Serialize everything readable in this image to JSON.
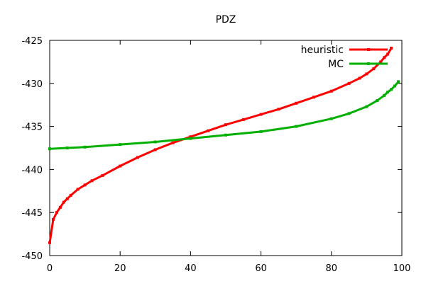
{
  "chart_data": {
    "type": "line",
    "title": "PDZ",
    "xlabel": "",
    "ylabel": "",
    "xlim": [
      0,
      100
    ],
    "ylim": [
      -450,
      -425
    ],
    "xticks": [
      0,
      20,
      40,
      60,
      80,
      100
    ],
    "yticks": [
      -450,
      -445,
      -440,
      -435,
      -430,
      -425
    ],
    "grid": false,
    "legend_position": "top-right",
    "series": [
      {
        "name": "heuristic",
        "color": "#ff0000",
        "marker": "square",
        "x": [
          0,
          1,
          2,
          3,
          4,
          5,
          6,
          8,
          10,
          12,
          15,
          20,
          25,
          30,
          35,
          40,
          45,
          50,
          55,
          60,
          65,
          70,
          75,
          80,
          85,
          88,
          90,
          92,
          94,
          95,
          96,
          97
        ],
        "y": [
          -448.5,
          -445.8,
          -445.0,
          -444.4,
          -443.8,
          -443.4,
          -443.0,
          -442.3,
          -441.8,
          -441.3,
          -440.7,
          -439.6,
          -438.6,
          -437.7,
          -436.9,
          -436.2,
          -435.5,
          -434.8,
          -434.2,
          -433.6,
          -433.0,
          -432.3,
          -431.6,
          -430.9,
          -430.0,
          -429.4,
          -428.9,
          -428.3,
          -427.5,
          -427.0,
          -426.6,
          -425.9
        ]
      },
      {
        "name": "MC",
        "color": "#00b000",
        "marker": "square",
        "x": [
          0,
          5,
          10,
          20,
          30,
          40,
          50,
          60,
          70,
          80,
          85,
          90,
          93,
          95,
          96,
          97,
          98,
          99
        ],
        "y": [
          -437.6,
          -437.5,
          -437.4,
          -437.1,
          -436.8,
          -436.4,
          -436.0,
          -435.6,
          -435.0,
          -434.1,
          -433.5,
          -432.7,
          -432.0,
          -431.4,
          -431.0,
          -430.7,
          -430.3,
          -429.8
        ]
      }
    ]
  }
}
